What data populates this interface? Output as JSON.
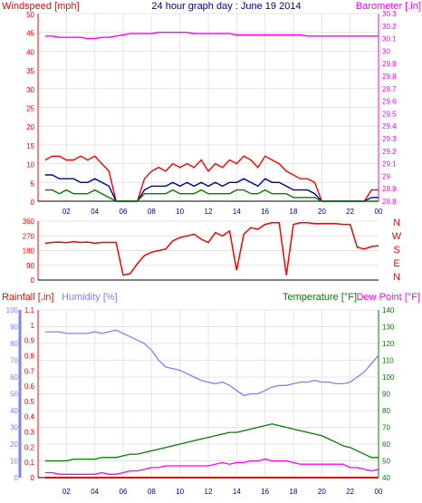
{
  "chart_data": [
    {
      "type": "line",
      "title": "24 hour graph day : June 19 2014",
      "left_label": "Windspeed [mph]",
      "right_label": "Barometer [.in]",
      "x_ticks": [
        "02",
        "04",
        "06",
        "08",
        "10",
        "12",
        "14",
        "16",
        "18",
        "20",
        "22",
        "00"
      ],
      "ylim_left": [
        0,
        50
      ],
      "y_ticks_left": [
        "0",
        "5",
        "10",
        "15",
        "20",
        "25",
        "30",
        "35",
        "40",
        "45",
        "50"
      ],
      "ylim_right": [
        28.8,
        30.3
      ],
      "y_ticks_right": [
        "28.8",
        "28.9",
        "29",
        "29.1",
        "29.2",
        "29.3",
        "29.4",
        "29.5",
        "29.6",
        "29.7",
        "29.8",
        "29.9",
        "30",
        "30.1",
        "30.2",
        "30.3"
      ],
      "x_hours": [
        0.5,
        1,
        1.5,
        2,
        2.5,
        3,
        3.5,
        4,
        4.5,
        5,
        5.5,
        6,
        6.5,
        7,
        7.5,
        8,
        8.5,
        9,
        9.5,
        10,
        10.5,
        11,
        11.5,
        12,
        12.5,
        13,
        13.5,
        14,
        14.5,
        15,
        15.5,
        16,
        16.5,
        17,
        17.5,
        18,
        18.5,
        19,
        19.5,
        20,
        20.5,
        21,
        21.5,
        22,
        22.5,
        23,
        23.5,
        24
      ],
      "series": [
        {
          "color": "#ff0000",
          "values": [
            11,
            12,
            12,
            11,
            11,
            12,
            11,
            12,
            10,
            8,
            0,
            0,
            0,
            0,
            6,
            8,
            9,
            8,
            10,
            9,
            10,
            9,
            11,
            8,
            10,
            9,
            11,
            10,
            12,
            11,
            9,
            12,
            11,
            10,
            8,
            7,
            6,
            6,
            5,
            0,
            0,
            0,
            0,
            0,
            0,
            0,
            3,
            3
          ]
        },
        {
          "color": "#0000a0",
          "values": [
            7,
            7,
            6,
            6,
            6,
            5,
            5,
            6,
            5,
            4,
            0,
            0,
            0,
            0,
            3,
            4,
            4,
            4,
            5,
            4,
            5,
            4,
            5,
            4,
            5,
            4,
            5,
            5,
            6,
            5,
            4,
            6,
            5,
            5,
            4,
            3,
            3,
            3,
            2,
            0,
            0,
            0,
            0,
            0,
            0,
            0,
            1,
            1
          ]
        },
        {
          "color": "#008000",
          "values": [
            3,
            3,
            2,
            3,
            2,
            2,
            2,
            3,
            2,
            1,
            0,
            0,
            0,
            0,
            2,
            2,
            2,
            2,
            3,
            2,
            2,
            2,
            3,
            2,
            2,
            2,
            2,
            3,
            3,
            2,
            2,
            3,
            2,
            2,
            2,
            1,
            1,
            1,
            1,
            0,
            0,
            0,
            0,
            0,
            0,
            0,
            0,
            0
          ]
        },
        {
          "color": "#ff00ff",
          "axis": "right",
          "values": [
            30.12,
            30.12,
            30.11,
            30.11,
            30.11,
            30.11,
            30.1,
            30.1,
            30.11,
            30.11,
            30.12,
            30.13,
            30.14,
            30.14,
            30.14,
            30.14,
            30.15,
            30.15,
            30.15,
            30.15,
            30.15,
            30.14,
            30.14,
            30.14,
            30.14,
            30.14,
            30.14,
            30.13,
            30.13,
            30.13,
            30.13,
            30.13,
            30.13,
            30.13,
            30.13,
            30.13,
            30.13,
            30.12,
            30.12,
            30.12,
            30.12,
            30.12,
            30.12,
            30.12,
            30.12,
            30.12,
            30.12,
            30.12
          ]
        }
      ]
    },
    {
      "type": "line",
      "right_label_chars": [
        "N",
        "W",
        "S",
        "E",
        "N"
      ],
      "ylim": [
        0,
        360
      ],
      "y_ticks": [
        "0",
        "90",
        "180",
        "270",
        "360"
      ],
      "x_hours": [
        0.5,
        1,
        1.5,
        2,
        2.5,
        3,
        3.5,
        4,
        4.5,
        5,
        5.5,
        6,
        6.5,
        7,
        7.5,
        8,
        8.5,
        9,
        9.5,
        10,
        10.5,
        11,
        11.5,
        12,
        12.5,
        13,
        13.5,
        14,
        14.5,
        15,
        15.5,
        16,
        16.5,
        17,
        17.5,
        18,
        18.5,
        19,
        19.5,
        20,
        20.5,
        21,
        21.5,
        22,
        22.5,
        23,
        23.5,
        24
      ],
      "series": [
        {
          "color": "#ff0000",
          "values": [
            225,
            230,
            232,
            228,
            235,
            230,
            232,
            225,
            230,
            230,
            230,
            30,
            40,
            100,
            150,
            170,
            180,
            190,
            240,
            260,
            270,
            280,
            250,
            230,
            290,
            270,
            300,
            60,
            280,
            320,
            310,
            340,
            350,
            350,
            30,
            340,
            350,
            350,
            345,
            345,
            345,
            345,
            340,
            340,
            200,
            190,
            205,
            210
          ]
        }
      ]
    },
    {
      "type": "line",
      "labels": {
        "rainfall": "Rainfall [.in]",
        "humidity": "Humidity [%]",
        "temperature": "Temperature [°F]",
        "dewpoint": "Dew Point [°F]"
      },
      "x_ticks": [
        "02",
        "04",
        "06",
        "08",
        "10",
        "12",
        "14",
        "16",
        "18",
        "20",
        "22",
        "00"
      ],
      "humidity_ticks": [
        "0",
        "10",
        "20",
        "30",
        "40",
        "50",
        "60",
        "70",
        "80",
        "90",
        "100"
      ],
      "rain_ticks": [
        "0",
        "0.1",
        "0.2",
        "0.3",
        "0.4",
        "0.5",
        "0.6",
        "0.7",
        "0.8",
        "0.9",
        "1",
        "1.1"
      ],
      "temp_ticks": [
        "40",
        "50",
        "60",
        "70",
        "80",
        "90",
        "100",
        "110",
        "120",
        "130",
        "140"
      ],
      "ylim_humidity": [
        0,
        100
      ],
      "ylim_rain": [
        0,
        1.1
      ],
      "ylim_temp": [
        40,
        140
      ],
      "x_hours": [
        0.5,
        1,
        1.5,
        2,
        2.5,
        3,
        3.5,
        4,
        4.5,
        5,
        5.5,
        6,
        6.5,
        7,
        7.5,
        8,
        8.5,
        9,
        9.5,
        10,
        10.5,
        11,
        11.5,
        12,
        12.5,
        13,
        13.5,
        14,
        14.5,
        15,
        15.5,
        16,
        16.5,
        17,
        17.5,
        18,
        18.5,
        19,
        19.5,
        20,
        20.5,
        21,
        21.5,
        22,
        22.5,
        23,
        23.5,
        24
      ],
      "series": [
        {
          "name": "Humidity [%]",
          "axis": "humidity",
          "color": "#8080ff",
          "values": [
            87,
            87,
            87,
            86,
            86,
            86,
            86,
            87,
            86,
            87,
            88,
            86,
            84,
            82,
            80,
            76,
            70,
            66,
            65,
            64,
            62,
            60,
            58,
            57,
            56,
            57,
            55,
            52,
            49,
            50,
            50,
            52,
            54,
            55,
            55,
            56,
            57,
            57,
            58,
            57,
            57,
            56,
            56,
            57,
            60,
            63,
            68,
            73
          ]
        },
        {
          "name": "Temperature [°F]",
          "axis": "temp",
          "color": "#008000",
          "values": [
            50,
            50,
            50,
            50,
            51,
            51,
            51,
            51,
            52,
            52,
            52,
            53,
            54,
            54,
            55,
            56,
            57,
            58,
            59,
            60,
            61,
            62,
            63,
            64,
            65,
            66,
            67,
            67,
            68,
            69,
            70,
            71,
            72,
            71,
            70,
            69,
            68,
            67,
            66,
            65,
            63,
            61,
            59,
            58,
            56,
            54,
            52,
            52
          ]
        },
        {
          "name": "Dew Point [°F]",
          "axis": "temp",
          "color": "#ff00ff",
          "values": [
            43,
            43,
            42,
            42,
            42,
            42,
            42,
            42,
            43,
            42,
            42,
            43,
            44,
            44,
            45,
            46,
            46,
            47,
            47,
            47,
            47,
            47,
            47,
            47,
            48,
            49,
            48,
            49,
            49,
            50,
            50,
            51,
            50,
            50,
            50,
            49,
            48,
            48,
            48,
            48,
            48,
            48,
            48,
            46,
            46,
            45,
            44,
            45
          ]
        },
        {
          "name": "Rainfall [.in]",
          "axis": "rain",
          "color": "#ff0000",
          "values": [
            0,
            0,
            0,
            0,
            0,
            0,
            0,
            0,
            0,
            0,
            0,
            0,
            0,
            0,
            0,
            0,
            0,
            0,
            0,
            0,
            0,
            0,
            0,
            0,
            0,
            0,
            0,
            0,
            0,
            0,
            0,
            0,
            0,
            0,
            0,
            0,
            0,
            0,
            0,
            0,
            0,
            0,
            0,
            0,
            0,
            0,
            0,
            0
          ]
        }
      ]
    }
  ],
  "colors": {
    "wind": "#ff0000",
    "barometer": "#ff00ff",
    "title": "#0000a0",
    "humidity": "#8080ff",
    "temperature": "#008000",
    "dewpoint": "#ff00ff",
    "rain": "#ff0000",
    "grid": "#c0c0c0"
  }
}
